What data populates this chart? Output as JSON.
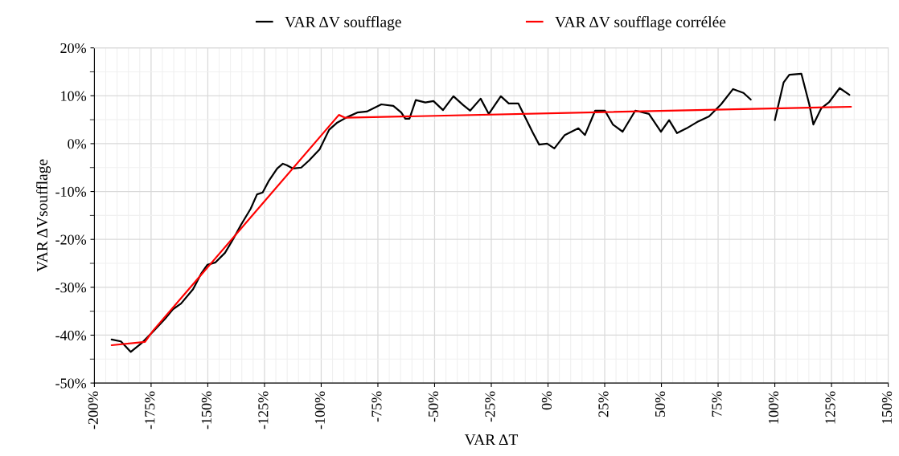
{
  "chart_data": {
    "type": "line",
    "xlabel": "VAR ΔT",
    "ylabel": "VAR ΔVsoufflage",
    "xlim": [
      -200,
      150
    ],
    "xticks": [
      {
        "value": -200,
        "label": "-200%"
      },
      {
        "value": -175,
        "label": "-175%"
      },
      {
        "value": -150,
        "label": "-150%"
      },
      {
        "value": -125,
        "label": "-125%"
      },
      {
        "value": -100,
        "label": "-100%"
      },
      {
        "value": -75,
        "label": "-75%"
      },
      {
        "value": -50,
        "label": "-50%"
      },
      {
        "value": -25,
        "label": "-25%"
      },
      {
        "value": 0,
        "label": "0%"
      },
      {
        "value": 25,
        "label": "25%"
      },
      {
        "value": 50,
        "label": "50%"
      },
      {
        "value": 75,
        "label": "75%"
      },
      {
        "value": 100,
        "label": "100%"
      },
      {
        "value": 125,
        "label": "125%"
      },
      {
        "value": 150,
        "label": "150%"
      }
    ],
    "ylim": [
      -50,
      20
    ],
    "yticks": [
      {
        "value": -50,
        "label": "-50%"
      },
      {
        "value": -40,
        "label": "-40%"
      },
      {
        "value": -30,
        "label": "-30%"
      },
      {
        "value": -20,
        "label": "-20%"
      },
      {
        "value": -10,
        "label": "-10%"
      },
      {
        "value": 0,
        "label": "0%"
      },
      {
        "value": 10,
        "label": "10%"
      },
      {
        "value": 20,
        "label": "20%"
      }
    ],
    "grid": true,
    "legend": "top",
    "series": [
      {
        "name": "VAR ΔV soufflage",
        "color": "#000000",
        "x": [
          -192.4,
          -188.3,
          -184,
          -179.5,
          -174.2,
          -168.9,
          -165.4,
          -161.8,
          -156.5,
          -153,
          -150.2,
          -146.6,
          -142.4,
          -138.9,
          -135.3,
          -131.1,
          -128.3,
          -125.8,
          -123,
          -119.4,
          -116.9,
          -115.2,
          -112.4,
          -108.8,
          -105.3,
          -100.7,
          -96.5,
          -92.9,
          -88.7,
          -84.1,
          -79.9,
          -73.5,
          -68.2,
          -64.7,
          -62.9,
          -61.1,
          -58.3,
          -54.1,
          -50.5,
          -46.3,
          -41.7,
          -37.5,
          -34.3,
          -29.7,
          -26.1,
          -20.8,
          -17.3,
          -13.1,
          -6.7,
          -3.9,
          -0.4,
          2.8,
          7.4,
          13.4,
          16.3,
          20.8,
          25.1,
          28.6,
          32.9,
          38.5,
          44.5,
          49.8,
          53.4,
          56.9,
          61.1,
          65.7,
          71,
          76.3,
          81.6,
          86.2,
          89.4,
          95,
          100,
          103.9,
          106.4,
          111.7,
          115.2,
          117,
          120.5,
          124,
          128.6,
          132.9
        ],
        "values": [
          -40.9,
          -41.3,
          -43.5,
          -41.8,
          -39.3,
          -36.6,
          -34.6,
          -33.4,
          -30.4,
          -27.2,
          -25.3,
          -24.8,
          -22.8,
          -20,
          -16.9,
          -13.6,
          -10.6,
          -10.2,
          -7.7,
          -5.2,
          -4.2,
          -4.5,
          -5.2,
          -5,
          -3.5,
          -1.2,
          2.9,
          4.4,
          5.5,
          6.5,
          6.7,
          8.2,
          7.9,
          6.5,
          5.2,
          5.2,
          9.1,
          8.6,
          8.9,
          7,
          9.9,
          8.1,
          6.9,
          9.4,
          6.2,
          9.9,
          8.4,
          8.4,
          2.3,
          -0.2,
          0,
          -1,
          1.8,
          3.2,
          1.8,
          6.9,
          6.9,
          4,
          2.5,
          6.9,
          6.2,
          2.5,
          4.9,
          2.2,
          3.2,
          4.5,
          5.7,
          8.2,
          11.4,
          10.6,
          9.2,
          null,
          4.9,
          12.8,
          14.4,
          14.6,
          8.2,
          4,
          7.4,
          8.7,
          11.6,
          10.2
        ]
      },
      {
        "name": "VAR ΔV soufflage corrélée",
        "color": "#ff0000",
        "x": [
          -192.4,
          -177.7,
          -174.2,
          -92.2,
          -89.4,
          133.6
        ],
        "values": [
          -42.1,
          -41.4,
          -39.1,
          6,
          5.4,
          7.7
        ]
      }
    ]
  }
}
